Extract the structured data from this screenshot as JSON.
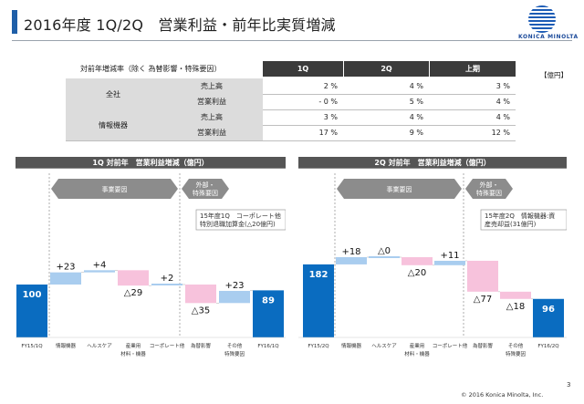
{
  "title": "2016年度 1Q/2Q　営業利益・前年比実質増減",
  "logo": {
    "brand_text": "KONICA MINOLTA"
  },
  "table": {
    "caption": "対前年増減率（除く 為替影響・特殊要因）",
    "unit": "【億円】",
    "columns": [
      "1Q",
      "2Q",
      "上期"
    ],
    "rows": [
      {
        "group": "全社",
        "item": "売上高",
        "values": [
          "2 %",
          "4 %",
          "3 %"
        ]
      },
      {
        "group": "",
        "item": "営業利益",
        "values": [
          "- 0 %",
          "5 %",
          "4 %"
        ]
      },
      {
        "group": "情報機器",
        "item": "売上高",
        "values": [
          "3 %",
          "4 %",
          "4 %"
        ]
      },
      {
        "group": "",
        "item": "営業利益",
        "values": [
          "17 %",
          "9 %",
          "12 %"
        ]
      }
    ]
  },
  "chart_data": [
    {
      "type": "waterfall",
      "title": "1Q 対前年　営業利益増減（億円）",
      "section_labels": [
        "事業要因",
        "外部・特殊要因"
      ],
      "annotation": "15年度1Q　コーポレート他特別退職加算金(△20億円)",
      "categories": [
        "FY15/1Q",
        "情報機器",
        "ヘルスケア",
        "産業用材料・機器",
        "コーポレート他",
        "為替影響",
        "その他特殊要因",
        "FY16/1Q"
      ],
      "values": [
        100,
        23,
        4,
        -29,
        2,
        -35,
        23,
        89
      ],
      "labels": [
        "100",
        "+23",
        "+4",
        "△29",
        "+2",
        "△35",
        "+23",
        "89"
      ]
    },
    {
      "type": "waterfall",
      "title": "2Q 対前年　営業利益増減（億円）",
      "section_labels": [
        "事業要因",
        "外部・特殊要因"
      ],
      "annotation": "15年度2Q　情報機器:資産売却益(31億円)",
      "categories": [
        "FY15/2Q",
        "情報機器",
        "ヘルスケア",
        "産業用材料・機器",
        "コーポレート他",
        "為替影響",
        "その他特殊要因",
        "FY16/2Q"
      ],
      "values": [
        182,
        18,
        0,
        -20,
        11,
        -77,
        -18,
        96
      ],
      "labels": [
        "182",
        "+18",
        "△0",
        "△20",
        "+11",
        "△77",
        "△18",
        "96"
      ]
    }
  ],
  "colors": {
    "total": "#0a6cc0",
    "increase": "#a9cdef",
    "decrease": "#f7c2dc",
    "arrow": "#8c8c8c",
    "header": "#555555"
  },
  "footer": "© 2016 Konica Minolta, Inc.",
  "page_number": "3"
}
